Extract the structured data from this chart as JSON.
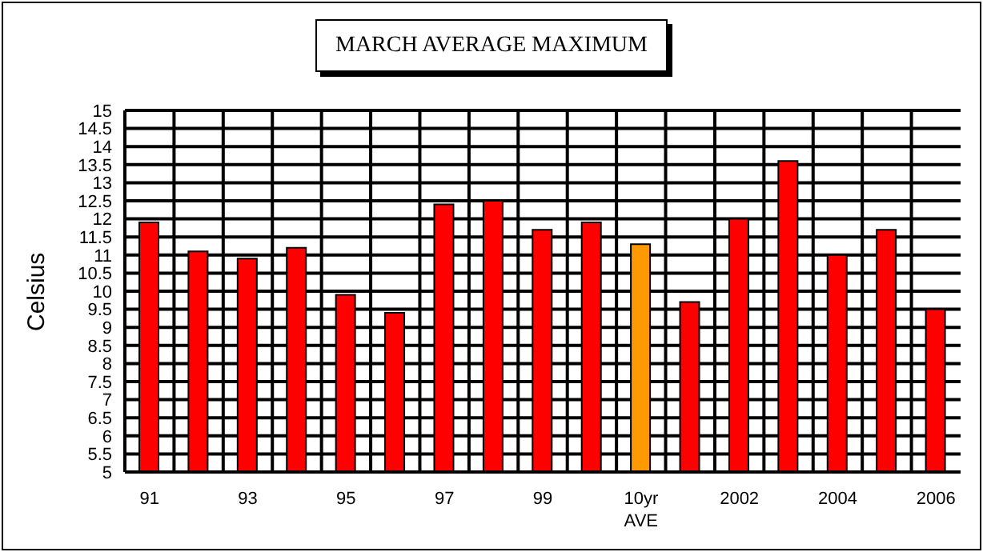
{
  "chart_data": {
    "type": "bar",
    "title": "MARCH AVERAGE MAXIMUM",
    "ylabel": "Celsius",
    "categories": [
      "91",
      null,
      "93",
      null,
      "95",
      null,
      "97",
      null,
      "99",
      null,
      "10yr AVE",
      null,
      "2002",
      null,
      "2004",
      null,
      "2006"
    ],
    "values": [
      11.9,
      11.1,
      10.9,
      11.2,
      9.9,
      9.4,
      12.4,
      12.5,
      11.7,
      11.9,
      11.3,
      9.7,
      12.0,
      13.6,
      11.0,
      11.7,
      9.5
    ],
    "colors": [
      "#ff0000",
      "#ff0000",
      "#ff0000",
      "#ff0000",
      "#ff0000",
      "#ff0000",
      "#ff0000",
      "#ff0000",
      "#ff0000",
      "#ff0000",
      "#ff9900",
      "#ff0000",
      "#ff0000",
      "#ff0000",
      "#ff0000",
      "#ff0000",
      "#ff0000"
    ],
    "ylim": [
      5,
      15
    ],
    "yticks": [
      5,
      5.5,
      6,
      6.5,
      7,
      7.5,
      8,
      8.5,
      9,
      9.5,
      10,
      10.5,
      11,
      11.5,
      12,
      12.5,
      13,
      13.5,
      14,
      14.5,
      15
    ],
    "grid": true,
    "legend": false
  }
}
